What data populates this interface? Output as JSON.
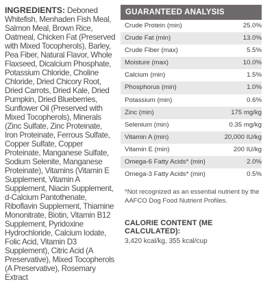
{
  "ingredients": {
    "label": "INGREDIENTS:",
    "text": "Deboned Whitefish, Menhaden Fish Meal, Salmon Meal, Brown Rice, Oatmeal, Chicken Fat (Preserved with Mixed Tocopherols), Barley, Pea Fiber, Natural Flavor, Whole Flaxseed, Dicalcium Phosphate, Potassium Chloride, Choline Chloride, Dried Chicory Root, Dried Carrots, Dried Kale, Dried Pumpkin, Dried Blueberries, Sunflower Oil (Preserved with Mixed Tocopherols), Minerals (Zinc Sulfate, Zinc Proteinate, Iron Proteinate, Ferrous Sulfate, Copper Sulfate, Copper Proteinate, Manganese Sulfate, Sodium Selenite, Manganese Proteinate), Vitamins (Vitamin E Supplement, Vitamin A Supplement, Niacin Supplement, d-Calcium Pantothenate, Riboflavin Supplement, Thiamine Mononitrate, Biotin, Vitamin B12 Supplement, Pyridoxine Hydrochloride, Calcium Iodate, Folic Acid, Vitamin D3 Supplement), Citric Acid (A Preservative), Mixed Tocopherols (A Preservative), Rosemary Extract"
  },
  "analysis": {
    "title": "GUARANTEED ANALYSIS",
    "rows": [
      {
        "name": "Crude Protein (min)",
        "value": "25.0%"
      },
      {
        "name": "Crude Fat (min)",
        "value": "13.0%"
      },
      {
        "name": "Crude Fiber (max)",
        "value": "5.5%"
      },
      {
        "name": "Moisture (max)",
        "value": "10.0%"
      },
      {
        "name": "Calcium (min)",
        "value": "1.5%"
      },
      {
        "name": "Phosphorus (min)",
        "value": "1.0%"
      },
      {
        "name": "Potassium (min)",
        "value": "0.6%"
      },
      {
        "name": "Zinc (min)",
        "value": "175 mg/kg"
      },
      {
        "name": "Selenium (min)",
        "value": "0.35 mg/kg"
      },
      {
        "name": "Vitamin A (min)",
        "value": "20,000 IU/kg"
      },
      {
        "name": "Vitamin E (min)",
        "value": "200 IU/kg"
      },
      {
        "name": "Omega-6 Fatty Acids* (min)",
        "value": "2.0%"
      },
      {
        "name": "Omega-3 Fatty Acids* (min)",
        "value": "0.5%"
      }
    ],
    "footnote": "*Not recognized as an essential nutrient by the AAFCO Dog Food Nutrient Profiles."
  },
  "calories": {
    "title": "CALORIE CONTENT (ME CALCULATED):",
    "value": "3,420 kcal/kg, 355 kcal/cup"
  }
}
